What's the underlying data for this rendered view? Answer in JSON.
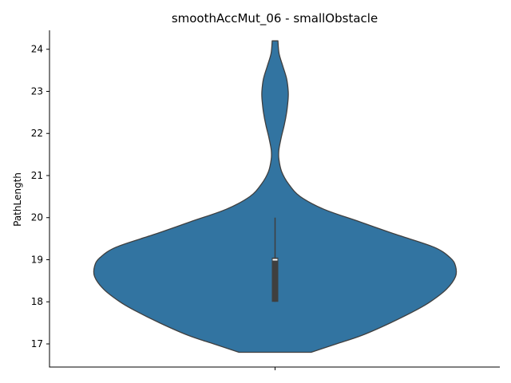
{
  "chart_data": {
    "type": "violin",
    "title": "smoothAccMut_06 - smallObstacle",
    "xlabel": "",
    "ylabel": "PathLength",
    "ylim": [
      16.45,
      24.45
    ],
    "yticks": [
      17,
      18,
      19,
      20,
      21,
      22,
      23,
      24
    ],
    "grid": false,
    "color": "#3274a1",
    "edge_color": "#3f3f3f",
    "series": [
      {
        "category": "",
        "min": 16.8,
        "max": 24.2,
        "box": {
          "q1": 18.0,
          "median": 19.0,
          "q3": 19.05,
          "whisker_low": 18.0,
          "whisker_high": 20.0
        },
        "density_profile": [
          [
            16.8,
            0.2
          ],
          [
            17.0,
            0.34
          ],
          [
            17.2,
            0.48
          ],
          [
            17.5,
            0.64
          ],
          [
            17.8,
            0.78
          ],
          [
            18.0,
            0.86
          ],
          [
            18.3,
            0.95
          ],
          [
            18.6,
            1.0
          ],
          [
            18.85,
            1.0
          ],
          [
            19.05,
            0.97
          ],
          [
            19.3,
            0.88
          ],
          [
            19.6,
            0.67
          ],
          [
            19.9,
            0.47
          ],
          [
            20.2,
            0.27
          ],
          [
            20.5,
            0.14
          ],
          [
            20.8,
            0.075
          ],
          [
            21.1,
            0.036
          ],
          [
            21.4,
            0.021
          ],
          [
            21.6,
            0.021
          ],
          [
            21.9,
            0.034
          ],
          [
            22.2,
            0.051
          ],
          [
            22.5,
            0.064
          ],
          [
            22.8,
            0.072
          ],
          [
            23.0,
            0.073
          ],
          [
            23.3,
            0.064
          ],
          [
            23.6,
            0.043
          ],
          [
            23.9,
            0.022
          ],
          [
            24.2,
            0.016
          ]
        ]
      }
    ]
  }
}
